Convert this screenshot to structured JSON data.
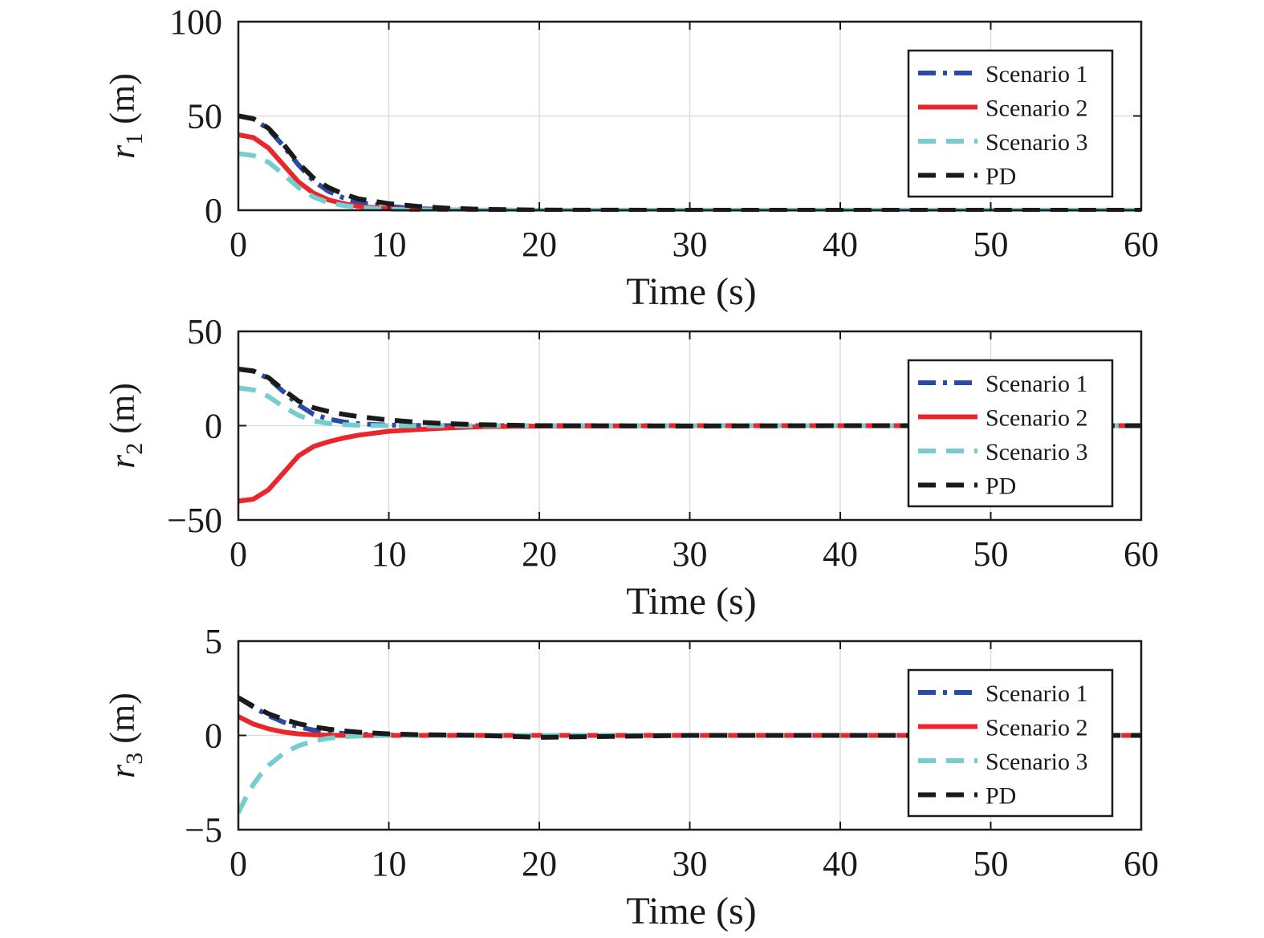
{
  "colors": {
    "scenario1": "#2b4aa6",
    "scenario2": "#e8262c",
    "scenario3": "#76cdcd",
    "pd": "#1a1a1a"
  },
  "chart_data": [
    {
      "type": "line",
      "xlabel": "Time (s)",
      "ylabel_symbol": "r",
      "ylabel_subscript": "1",
      "ylabel_unit": " (m)",
      "xlim": [
        0,
        60
      ],
      "ylim": [
        0,
        100
      ],
      "xticks": [
        0,
        10,
        20,
        30,
        40,
        50,
        60
      ],
      "yticks": [
        0,
        50,
        100
      ],
      "grid": true,
      "legend_position": "top-right",
      "series": [
        {
          "name": "Scenario 1",
          "color_key": "scenario1",
          "style": "dashdot",
          "x": [
            0,
            1,
            2,
            3,
            4,
            5,
            6,
            7,
            8,
            10,
            12,
            14,
            16,
            20,
            30,
            40,
            50,
            60
          ],
          "y": [
            50,
            48.5,
            43,
            34,
            24,
            15.5,
            10,
            6.5,
            4,
            2,
            0.8,
            0.3,
            0.1,
            0,
            0,
            0,
            0,
            0
          ]
        },
        {
          "name": "Scenario 2",
          "color_key": "scenario2",
          "style": "solid",
          "x": [
            0,
            1,
            2,
            3,
            4,
            5,
            6,
            7,
            8,
            10,
            12,
            14,
            16,
            20,
            30,
            40,
            50,
            60
          ],
          "y": [
            40,
            38.5,
            33,
            24,
            15,
            9,
            5.5,
            3.5,
            2,
            0.8,
            0.3,
            0.1,
            0,
            0,
            0,
            0,
            0,
            0
          ]
        },
        {
          "name": "Scenario 3",
          "color_key": "scenario3",
          "style": "dashed",
          "x": [
            0,
            1,
            2,
            3,
            4,
            5,
            6,
            7,
            8,
            10,
            12,
            14,
            16,
            20,
            30,
            40,
            50,
            60
          ],
          "y": [
            30,
            29,
            25.5,
            19,
            12,
            7,
            4,
            2.5,
            1.5,
            0.5,
            0.2,
            0.1,
            0,
            0,
            0,
            0,
            0,
            0
          ]
        },
        {
          "name": "PD",
          "color_key": "pd",
          "style": "dashed",
          "x": [
            0,
            1,
            2,
            3,
            4,
            5,
            6,
            7,
            8,
            10,
            12,
            14,
            16,
            20,
            30,
            40,
            50,
            60
          ],
          "y": [
            50,
            48.5,
            43.5,
            35,
            25,
            17,
            12,
            8.5,
            6,
            3.5,
            2,
            1,
            0.5,
            0.1,
            0,
            0,
            0,
            0
          ]
        }
      ]
    },
    {
      "type": "line",
      "xlabel": "Time (s)",
      "ylabel_symbol": "r",
      "ylabel_subscript": "2",
      "ylabel_unit": " (m)",
      "xlim": [
        0,
        60
      ],
      "ylim": [
        -50,
        50
      ],
      "xticks": [
        0,
        10,
        20,
        30,
        40,
        50,
        60
      ],
      "yticks": [
        -50,
        0,
        50
      ],
      "ytick_labels": [
        "−50",
        "0",
        "50"
      ],
      "grid": true,
      "legend_position": "top-right",
      "series": [
        {
          "name": "Scenario 1",
          "color_key": "scenario1",
          "style": "dashdot",
          "x": [
            0,
            1,
            2,
            3,
            4,
            5,
            6,
            7,
            8,
            10,
            12,
            14,
            16,
            20,
            30,
            40,
            50,
            60
          ],
          "y": [
            30,
            29,
            25,
            18,
            11,
            6,
            3.5,
            2,
            1,
            0.3,
            0.1,
            0,
            0,
            0,
            0,
            0,
            0,
            0
          ]
        },
        {
          "name": "Scenario 2",
          "color_key": "scenario2",
          "style": "solid",
          "x": [
            0,
            1,
            2,
            3,
            4,
            5,
            6,
            7,
            8,
            10,
            12,
            14,
            16,
            20,
            30,
            40,
            50,
            60
          ],
          "y": [
            -40,
            -39,
            -34,
            -25,
            -16,
            -11,
            -8.5,
            -6.5,
            -5,
            -3,
            -2,
            -1.2,
            -0.6,
            -0.2,
            0,
            0,
            0,
            0
          ]
        },
        {
          "name": "Scenario 3",
          "color_key": "scenario3",
          "style": "dashed",
          "x": [
            0,
            1,
            2,
            3,
            4,
            5,
            6,
            7,
            8,
            10,
            12,
            14,
            16,
            20,
            30,
            40,
            50,
            60
          ],
          "y": [
            20,
            19,
            15.5,
            10,
            5.5,
            2.5,
            1.2,
            0.5,
            0.2,
            0,
            0,
            0,
            0,
            0,
            0,
            0,
            0,
            0
          ]
        },
        {
          "name": "PD",
          "color_key": "pd",
          "style": "dashed",
          "x": [
            0,
            1,
            2,
            3,
            4,
            5,
            6,
            7,
            8,
            10,
            12,
            14,
            16,
            20,
            30,
            40,
            50,
            60
          ],
          "y": [
            30,
            29,
            25.5,
            19,
            13,
            9.5,
            7.5,
            6,
            4.8,
            3,
            1.8,
            1,
            0.5,
            0,
            -0.2,
            0,
            0,
            0
          ]
        }
      ]
    },
    {
      "type": "line",
      "xlabel": "Time (s)",
      "ylabel_symbol": "r",
      "ylabel_subscript": "3",
      "ylabel_unit": " (m)",
      "xlim": [
        0,
        60
      ],
      "ylim": [
        -5,
        5
      ],
      "xticks": [
        0,
        10,
        20,
        30,
        40,
        50,
        60
      ],
      "yticks": [
        -5,
        0,
        5
      ],
      "ytick_labels": [
        "−5",
        "0",
        "5"
      ],
      "grid": true,
      "legend_position": "top-right",
      "series": [
        {
          "name": "Scenario 1",
          "color_key": "scenario1",
          "style": "dashdot",
          "x": [
            0,
            1,
            2,
            3,
            4,
            5,
            6,
            7,
            8,
            10,
            12,
            14,
            16,
            20,
            30,
            40,
            50,
            60
          ],
          "y": [
            2,
            1.5,
            1.05,
            0.7,
            0.45,
            0.28,
            0.17,
            0.1,
            0.06,
            0.02,
            0,
            0,
            0,
            0,
            0,
            0,
            0,
            0
          ]
        },
        {
          "name": "Scenario 2",
          "color_key": "scenario2",
          "style": "solid",
          "x": [
            0,
            1,
            2,
            3,
            4,
            5,
            6,
            7,
            8,
            10,
            12,
            14,
            16,
            20,
            30,
            40,
            50,
            60
          ],
          "y": [
            1,
            0.6,
            0.35,
            0.18,
            0.08,
            0.03,
            0.01,
            0,
            0,
            0,
            0,
            0,
            0,
            0,
            0,
            0,
            0,
            0
          ]
        },
        {
          "name": "Scenario 3",
          "color_key": "scenario3",
          "style": "dashed",
          "x": [
            0,
            0.5,
            1,
            1.5,
            2,
            3,
            4,
            5,
            6,
            7,
            8,
            10,
            14,
            20,
            30,
            40,
            50,
            60
          ],
          "y": [
            -4.1,
            -3.3,
            -2.6,
            -2.05,
            -1.6,
            -0.95,
            -0.55,
            -0.3,
            -0.15,
            -0.07,
            -0.03,
            0,
            0,
            0,
            0,
            0,
            0,
            0
          ]
        },
        {
          "name": "PD",
          "color_key": "pd",
          "style": "dashed",
          "x": [
            0,
            1,
            2,
            3,
            4,
            5,
            6,
            7,
            8,
            10,
            12,
            14,
            16,
            20,
            30,
            40,
            50,
            60
          ],
          "y": [
            2,
            1.55,
            1.15,
            0.85,
            0.62,
            0.45,
            0.33,
            0.24,
            0.17,
            0.08,
            0.04,
            0.02,
            0,
            -0.1,
            0,
            0,
            0,
            0
          ]
        }
      ]
    }
  ]
}
